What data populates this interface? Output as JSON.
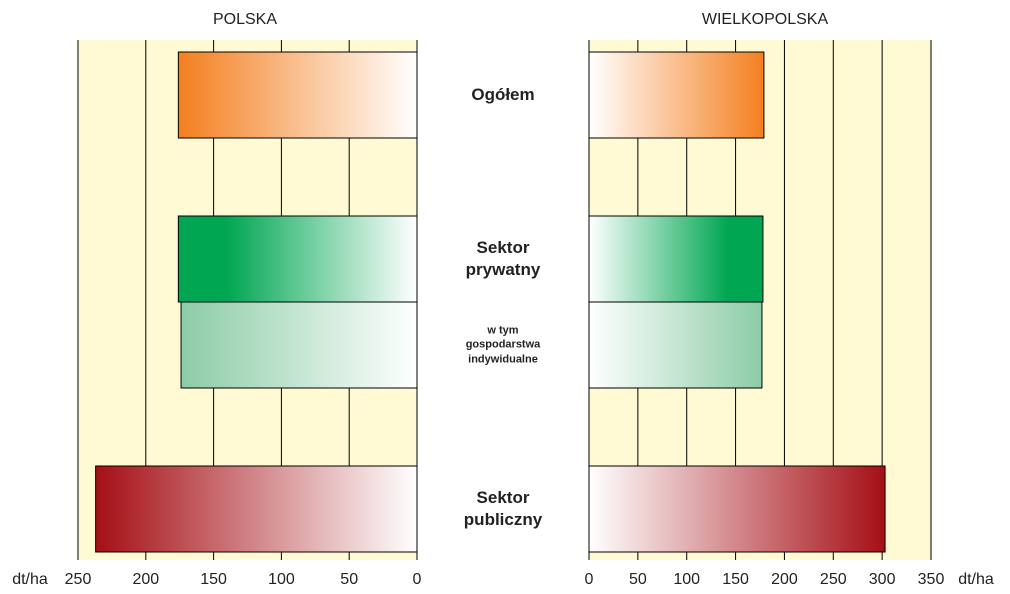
{
  "chart_data": [
    {
      "type": "bar",
      "orientation": "horizontal",
      "title": "POLSKA",
      "xlabel": "dt/ha",
      "categories": [
        "Ogółem",
        "Sektor prywatny",
        "w tym gospodarstwa indywidualne",
        "Sektor publiczny"
      ],
      "values": [
        176,
        176,
        174,
        237
      ],
      "colors": [
        "#f47f20",
        "#00a651",
        "#8ccca6",
        "#a50f15"
      ],
      "xlim": [
        250,
        0
      ],
      "xticks": [
        250,
        200,
        150,
        100,
        50,
        0
      ],
      "grid": true
    },
    {
      "type": "bar",
      "orientation": "horizontal",
      "title": "WIELKOPOLSKA",
      "xlabel": "dt/ha",
      "values": [
        179,
        178,
        177,
        303
      ],
      "colors": [
        "#f47f20",
        "#00a651",
        "#8ccca6",
        "#a50f15"
      ],
      "xlim": [
        0,
        350
      ],
      "xticks": [
        0,
        50,
        100,
        150,
        200,
        250,
        300,
        350
      ],
      "grid": true
    }
  ]
}
